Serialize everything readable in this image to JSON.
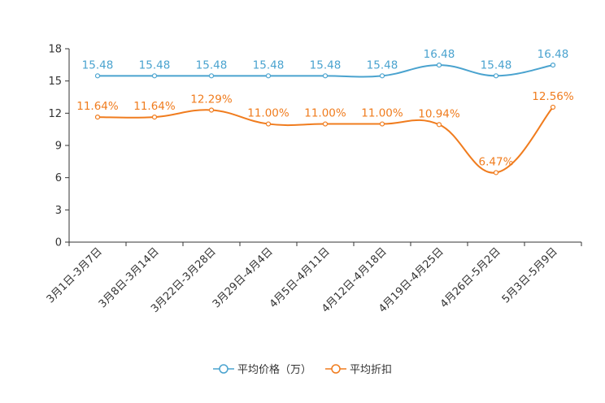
{
  "chart_data": {
    "type": "line",
    "title": "",
    "xlabel": "",
    "ylabel": "",
    "ylim": [
      0,
      18
    ],
    "yticks": [
      0,
      3,
      6,
      9,
      12,
      15,
      18
    ],
    "grid": false,
    "legend_position": "bottom",
    "categories": [
      "3月1日-3月7日",
      "3月8日-3月14日",
      "3月22日-3月28日",
      "3月29日-4月4日",
      "4月5日-4月11日",
      "4月12日-4月18日",
      "4月19日-4月25日",
      "4月26日-5月2日",
      "5月3日-5月9日"
    ],
    "series": [
      {
        "name": "平均价格（万）",
        "color": "#4aa3cf",
        "values": [
          15.48,
          15.48,
          15.48,
          15.48,
          15.48,
          15.48,
          16.48,
          15.48,
          16.48
        ],
        "labels": [
          "15.48",
          "15.48",
          "15.48",
          "15.48",
          "15.48",
          "15.48",
          "16.48",
          "15.48",
          "16.48"
        ]
      },
      {
        "name": "平均折扣",
        "color": "#f07c1e",
        "values": [
          11.64,
          11.64,
          12.29,
          11.0,
          11.0,
          11.0,
          10.94,
          6.47,
          12.56
        ],
        "labels": [
          "11.64%",
          "11.64%",
          "12.29%",
          "11.00%",
          "11.00%",
          "11.00%",
          "10.94%",
          "6.47%",
          "12.56%"
        ]
      }
    ]
  },
  "axis_color": "#333333"
}
